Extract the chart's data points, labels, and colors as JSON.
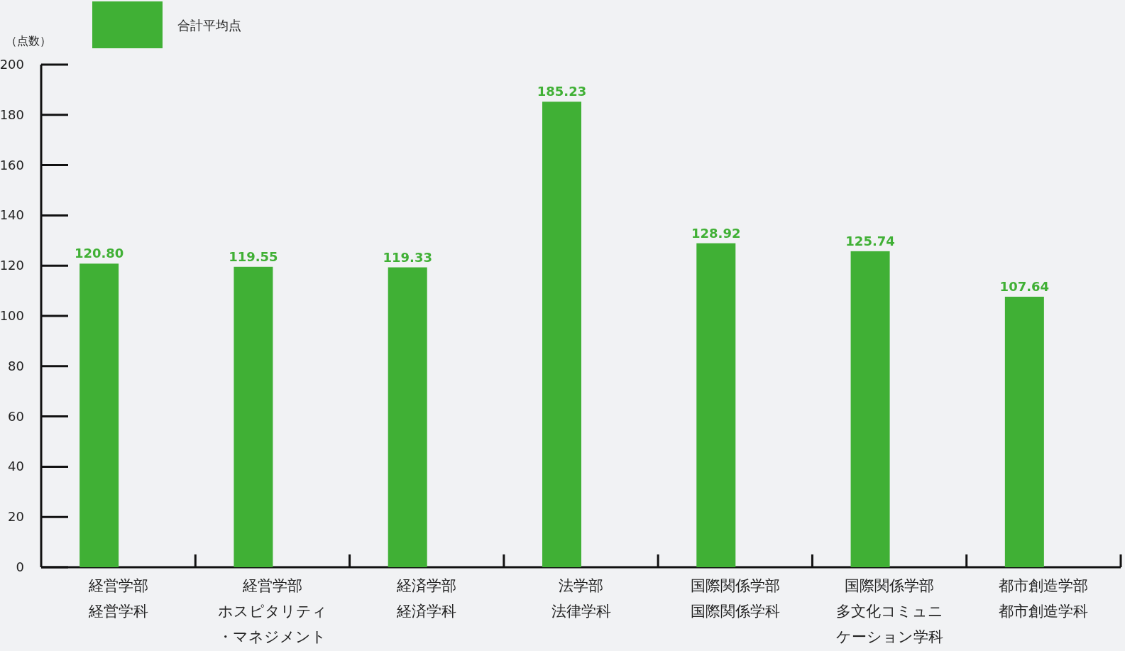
{
  "chart_data": {
    "type": "bar",
    "ylabel": "（点数）",
    "categories": [
      "経営学部経営学科",
      "経営学部ホスピタリティ・マネジメント",
      "経済学部経済学科",
      "法学部法律学科",
      "国際関係学部国際関係学科",
      "国際関係学部多文化コミュニケーション学科",
      "都市創造学部都市創造学科"
    ],
    "series": [
      {
        "name": "合計平均点",
        "color": "#40b035",
        "values": [
          120.8,
          119.55,
          119.33,
          185.23,
          128.92,
          125.74,
          107.64
        ],
        "value_labels": [
          "120.80",
          "119.55",
          "119.33",
          "185.23",
          "128.92",
          "125.74",
          "107.64"
        ]
      }
    ],
    "ylim": [
      0,
      200
    ],
    "yticks": [
      0,
      20,
      40,
      60,
      80,
      100,
      120,
      140,
      160,
      180,
      200
    ],
    "legend": "top left",
    "grid": false
  }
}
